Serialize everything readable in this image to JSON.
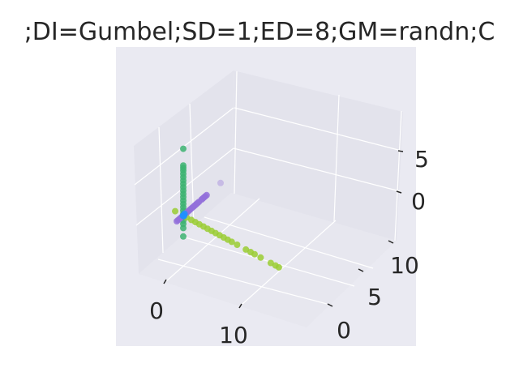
{
  "chart_data": {
    "type": "scatter",
    "projection": "3d",
    "title": ";DI=Gumbel;SD=1;ED=8;GM=randn;C",
    "xticks": [
      "0",
      "10"
    ],
    "yticks": [
      "0",
      "5",
      "10"
    ],
    "zticks": [
      "0",
      "5"
    ],
    "xlim": [
      -4,
      20
    ],
    "ylim": [
      -2,
      13
    ],
    "zlim": [
      -3,
      9
    ],
    "grid": true,
    "legend": "none",
    "series": [
      {
        "color": "#3cb371",
        "points": [
          [
            0,
            0,
            8
          ],
          [
            0,
            0,
            6
          ],
          [
            0,
            0,
            5.7
          ],
          [
            0,
            0,
            5.4
          ],
          [
            0,
            0,
            5.0
          ],
          [
            0,
            0,
            4.6
          ],
          [
            0,
            0,
            4.2
          ],
          [
            0,
            0,
            3.8
          ],
          [
            0,
            0,
            3.4
          ],
          [
            0,
            0,
            3.0
          ],
          [
            0,
            0,
            2.6
          ],
          [
            0,
            0,
            2.2
          ],
          [
            0,
            0,
            1.8
          ],
          [
            0,
            0,
            1.4
          ],
          [
            0,
            0,
            1.0
          ],
          [
            0,
            0,
            0.6
          ],
          [
            0,
            0,
            0.2
          ],
          [
            0,
            0,
            -0.2
          ],
          [
            0,
            0,
            -0.6
          ],
          [
            0,
            0,
            -1.0
          ],
          [
            0,
            0,
            -1.5
          ],
          [
            0,
            0,
            -2.5
          ]
        ]
      },
      {
        "color": "#9acd32",
        "points": [
          [
            -1.2,
            0,
            0
          ],
          [
            0.5,
            0,
            0
          ],
          [
            1.2,
            0,
            0
          ],
          [
            1.8,
            0,
            0
          ],
          [
            2.4,
            0,
            0
          ],
          [
            3.0,
            0,
            0
          ],
          [
            3.6,
            0,
            0
          ],
          [
            4.2,
            0,
            0
          ],
          [
            4.8,
            0,
            0
          ],
          [
            5.4,
            0,
            0
          ],
          [
            6.0,
            0,
            0
          ],
          [
            6.6,
            0,
            0
          ],
          [
            7.2,
            0,
            0
          ],
          [
            8.0,
            0,
            0
          ],
          [
            9.3,
            0,
            0
          ],
          [
            10.0,
            0,
            0
          ],
          [
            10.6,
            0,
            0
          ],
          [
            11.5,
            0,
            0
          ],
          [
            13.0,
            0,
            0
          ],
          [
            13.7,
            0,
            0
          ],
          [
            14.2,
            0,
            0
          ]
        ]
      },
      {
        "color": "#9370db",
        "points": [
          [
            0,
            -2.0,
            0
          ],
          [
            0,
            -1.6,
            0
          ],
          [
            0,
            -1.2,
            0
          ],
          [
            0,
            -0.8,
            0
          ],
          [
            0,
            -0.4,
            0
          ],
          [
            0,
            0,
            0
          ],
          [
            0,
            0.4,
            0
          ],
          [
            0,
            0.8,
            0
          ],
          [
            0,
            1.2,
            0
          ],
          [
            0,
            1.6,
            0
          ],
          [
            0,
            2.0,
            0
          ],
          [
            0,
            2.4,
            0
          ],
          [
            0,
            2.8,
            0
          ],
          [
            0,
            3.2,
            0
          ],
          [
            0,
            3.6,
            0
          ],
          [
            0,
            4.0,
            0
          ],
          [
            0,
            4.4,
            0
          ],
          [
            0,
            4.8,
            0
          ],
          [
            0,
            5.6,
            0
          ],
          [
            0,
            6.0,
            0
          ],
          [
            0,
            6.4,
            0
          ],
          [
            0,
            6.8,
            0
          ],
          [
            0,
            7.2,
            0
          ],
          [
            0,
            11.5,
            0
          ]
        ]
      },
      {
        "color": "#1e90ff",
        "points": [
          [
            0,
            0,
            0
          ],
          [
            0.2,
            -0.2,
            0.1
          ],
          [
            -0.1,
            0.1,
            -0.1
          ],
          [
            0.1,
            0.2,
            0.2
          ]
        ]
      }
    ]
  }
}
